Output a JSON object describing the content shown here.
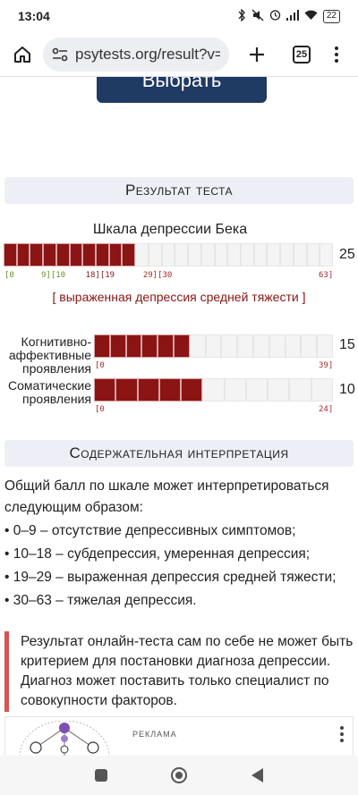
{
  "status_bar": {
    "time": "13:04",
    "battery": "22",
    "icons": [
      "bluetooth-icon",
      "mute-icon",
      "alarm-icon",
      "signal-icon",
      "wifi-icon",
      "battery-icon"
    ]
  },
  "browser": {
    "url": "psytests.org/result?v=d",
    "tabs_count": "25"
  },
  "top_button": {
    "label": "Выбрать"
  },
  "result_section": {
    "title": "Результат теста",
    "scale_title": "Шкала депрессии Бека",
    "score": "25",
    "score_value": 25,
    "max_value": 63,
    "ticks": [
      {
        "text": "[0",
        "value": 0,
        "color": "green"
      },
      {
        "text": "9][10",
        "value": 9.5,
        "color": "green"
      },
      {
        "text": "18][19",
        "value": 18.5,
        "color": "dark"
      },
      {
        "text": "29][30",
        "value": 29.5,
        "color": "red"
      },
      {
        "text": "63]",
        "value": 63,
        "color": "red"
      }
    ],
    "verdict": "[ выраженная депрессия средней тяжести ]",
    "subscales": [
      {
        "label": "Когнитивно-аффективные проявления",
        "score": "15",
        "score_value": 15,
        "max_value": 39,
        "min_tick": "[0",
        "max_tick": "39]"
      },
      {
        "label": "Соматические проявления",
        "score": "10",
        "score_value": 10,
        "max_value": 24,
        "min_tick": "[0",
        "max_tick": "24]"
      }
    ]
  },
  "interpretation_section": {
    "title": "Содержательная интерпретация",
    "intro": "Общий балл по шкале может интерпретироваться следующим образом:",
    "items": [
      "• 0–9 – отсутствие депрессивных симптомов;",
      "• 10–18 – субдепрессия, умеренная депрессия;",
      "• 19–29 – выраженная депрессия средней тяжести;",
      "• 30–63 – тяжелая депрессия."
    ],
    "note": "Результат онлайн-теста сам по себе не может быть критерием для постановки диагноза депрессии. Диагноз может поставить только специалист по совокупности факторов."
  },
  "ad": {
    "label": "РЕКЛАМА"
  }
}
